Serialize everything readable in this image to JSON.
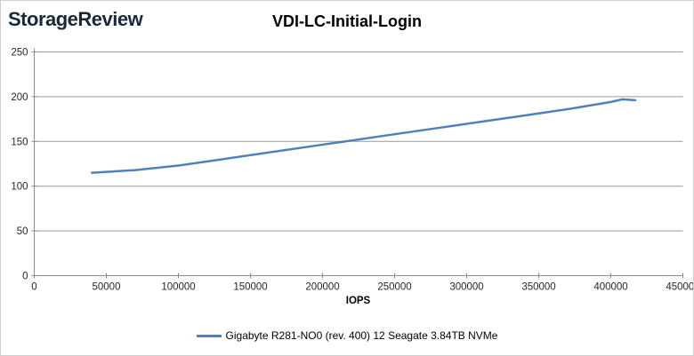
{
  "logo": {
    "text": "StorageReview",
    "color": "#17293a"
  },
  "chart_data": {
    "type": "line",
    "title": "VDI-LC-Initial-Login",
    "xlabel": "IOPS",
    "ylabel": "",
    "xlim": [
      0,
      450000
    ],
    "ylim": [
      0,
      250
    ],
    "x_ticks": [
      0,
      50000,
      100000,
      150000,
      200000,
      250000,
      300000,
      350000,
      400000,
      450000
    ],
    "y_ticks": [
      0,
      50,
      100,
      150,
      200,
      250
    ],
    "grid": "horizontal-only",
    "legend_position": "bottom-center",
    "colors": {
      "grid": "#9a9a9a",
      "axis": "#8c8c8c",
      "tick_text": "#262626"
    },
    "series": [
      {
        "name": "Gigabyte R281-NO0 (rev. 400) 12 Seagate 3.84TB NVMe",
        "color": "#4f81bd",
        "points": [
          [
            40000,
            115
          ],
          [
            70000,
            118
          ],
          [
            100000,
            123
          ],
          [
            130000,
            130
          ],
          [
            160000,
            137
          ],
          [
            190000,
            144
          ],
          [
            220000,
            151
          ],
          [
            250000,
            158
          ],
          [
            280000,
            165
          ],
          [
            310000,
            172
          ],
          [
            340000,
            179
          ],
          [
            370000,
            186
          ],
          [
            400000,
            194
          ],
          [
            408000,
            197
          ],
          [
            417000,
            196
          ]
        ]
      }
    ]
  }
}
